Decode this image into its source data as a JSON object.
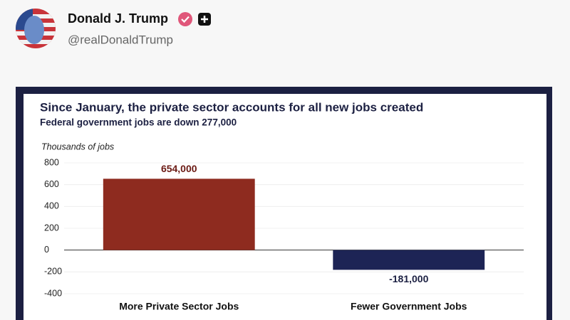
{
  "post": {
    "name": "Donald J. Trump",
    "handle": "@realDonaldTrump"
  },
  "chart_data": {
    "type": "bar",
    "title": "Since January, the private sector accounts for all new jobs created",
    "subtitle": "Federal government jobs are down 277,000",
    "y_label": "Thousands of jobs",
    "categories": [
      "More Private Sector Jobs",
      "Fewer Government Jobs"
    ],
    "values": [
      654,
      -181
    ],
    "value_labels": [
      "654,000",
      "-181,000"
    ],
    "colors": [
      "#8e2b1f",
      "#1d2455"
    ],
    "ylim": [
      -400,
      800
    ],
    "yticks": [
      -400,
      -200,
      0,
      200,
      400,
      600,
      800
    ],
    "grid": true
  }
}
